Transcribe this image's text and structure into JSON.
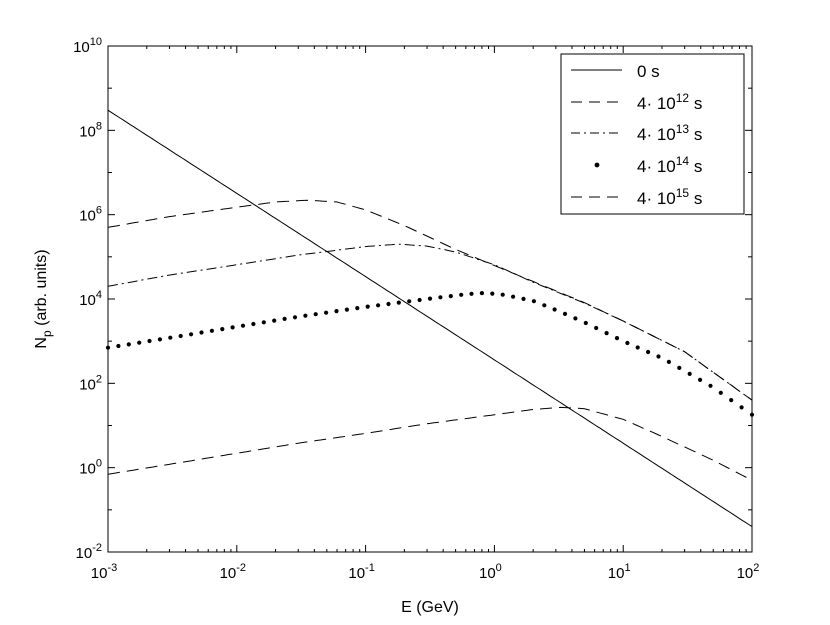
{
  "chart_data": {
    "type": "line",
    "xscale": "log",
    "yscale": "log",
    "xlim": [
      0.001,
      100
    ],
    "ylim": [
      0.01,
      10000000000
    ],
    "xlabel": "E (GeV)",
    "ylabel": {
      "main": "N",
      "sub": "p",
      "rest": " (arb. units)"
    },
    "x_ticks": [
      {
        "base": "10",
        "exp": "-3",
        "value": 0.001
      },
      {
        "base": "10",
        "exp": "-2",
        "value": 0.01
      },
      {
        "base": "10",
        "exp": "-1",
        "value": 0.1
      },
      {
        "base": "10",
        "exp": "0",
        "value": 1
      },
      {
        "base": "10",
        "exp": "1",
        "value": 10
      },
      {
        "base": "10",
        "exp": "2",
        "value": 100
      }
    ],
    "y_ticks": [
      {
        "base": "10",
        "exp": "-2",
        "value": 0.01
      },
      {
        "base": "10",
        "exp": "0",
        "value": 1
      },
      {
        "base": "10",
        "exp": "2",
        "value": 100
      },
      {
        "base": "10",
        "exp": "4",
        "value": 10000
      },
      {
        "base": "10",
        "exp": "6",
        "value": 1000000
      },
      {
        "base": "10",
        "exp": "8",
        "value": 100000000
      },
      {
        "base": "10",
        "exp": "10",
        "value": 10000000000
      }
    ],
    "legend_position": "top-right",
    "series": [
      {
        "name": "0 s",
        "label": {
          "pre": "0 s",
          "exp": "",
          "post": ""
        },
        "style": "solid",
        "x": [
          0.001,
          0.01,
          0.1,
          1,
          10,
          100
        ],
        "y": [
          300000000,
          3200000,
          34000,
          360,
          3.8,
          0.04
        ]
      },
      {
        "name": "4·10^12 s",
        "label": {
          "pre": "4· 10",
          "exp": "12",
          "post": " s"
        },
        "style": "dashed",
        "x": [
          0.001,
          0.003,
          0.01,
          0.02,
          0.035,
          0.06,
          0.1,
          0.2,
          0.5,
          1,
          2,
          5,
          10,
          30,
          100
        ],
        "y": [
          500000,
          900000,
          1500000,
          2000000,
          2200000,
          2000000,
          1300000,
          550000,
          150000,
          62000,
          26000,
          8200,
          3000,
          560,
          40
        ]
      },
      {
        "name": "4·10^13 s",
        "label": {
          "pre": "4· 10",
          "exp": "13",
          "post": " s"
        },
        "style": "dashdot",
        "x": [
          0.001,
          0.003,
          0.01,
          0.03,
          0.1,
          0.18,
          0.3,
          0.5,
          1,
          2,
          5,
          10,
          30,
          100
        ],
        "y": [
          20000,
          37000,
          65000,
          110000,
          175000,
          200000,
          180000,
          130000,
          65000,
          25000,
          8000,
          3000,
          560,
          40
        ]
      },
      {
        "name": "4·10^14 s",
        "label": {
          "pre": "4· 10",
          "exp": "14",
          "post": " s"
        },
        "style": "dotted",
        "x": [
          0.001,
          0.003,
          0.01,
          0.03,
          0.1,
          0.3,
          0.6,
          0.85,
          1.2,
          2,
          3,
          5,
          10,
          20,
          50,
          100
        ],
        "y": [
          700,
          1200,
          2200,
          3800,
          6500,
          10000,
          13000,
          14000,
          12500,
          9000,
          5500,
          2800,
          1000,
          400,
          80,
          18
        ]
      },
      {
        "name": "4·10^15 s",
        "label": {
          "pre": "4· 10",
          "exp": "15",
          "post": " s"
        },
        "style": "dashed",
        "x": [
          0.001,
          0.003,
          0.01,
          0.03,
          0.1,
          0.3,
          1,
          2,
          3.3,
          5,
          10,
          20,
          50,
          100
        ],
        "y": [
          0.7,
          1.2,
          2.2,
          3.8,
          6.5,
          11,
          18,
          24,
          27,
          25,
          14,
          5.5,
          1.5,
          0.5
        ]
      }
    ]
  }
}
